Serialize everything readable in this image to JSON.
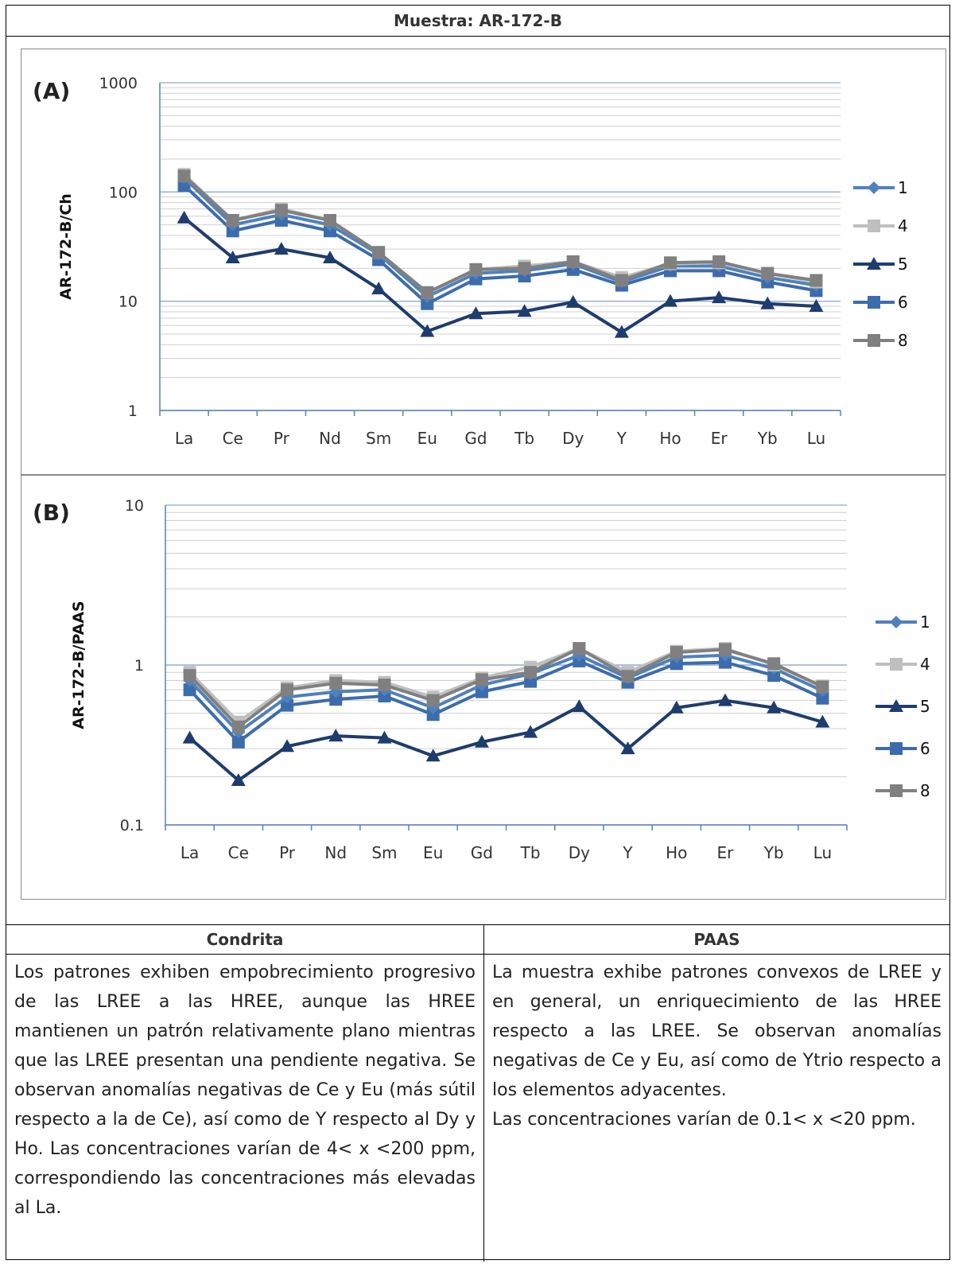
{
  "header": {
    "title": "Muestra: AR-172-B"
  },
  "legend_series": [
    "1",
    "4",
    "5",
    "6",
    "8"
  ],
  "series_colors": {
    "1": "#4f81bd",
    "4": "#bfbfbf",
    "5": "#1f3c6e",
    "6": "#3c6cac",
    "8": "#808080"
  },
  "chart_data": [
    {
      "panel_label": "(A)",
      "type": "line",
      "ylabel": "AR-172-B/Ch",
      "yscale": "log",
      "ylim": [
        1,
        1000
      ],
      "yticks": [
        "1",
        "10",
        "100",
        "1000"
      ],
      "legend_position": "right",
      "grid": true,
      "categories": [
        "La",
        "Ce",
        "Pr",
        "Nd",
        "Sm",
        "Eu",
        "Gd",
        "Tb",
        "Dy",
        "Y",
        "Ho",
        "Er",
        "Yb",
        "Lu"
      ],
      "series": [
        {
          "name": "1",
          "marker": "diamond",
          "values": [
            135,
            50,
            62,
            50,
            27,
            11,
            18,
            19,
            22,
            15,
            21,
            21,
            16.5,
            14
          ]
        },
        {
          "name": "4",
          "marker": "square",
          "values": [
            145,
            55,
            70,
            55,
            28,
            12,
            19.5,
            21,
            23,
            16.5,
            22,
            22.5,
            18,
            15
          ]
        },
        {
          "name": "5",
          "marker": "triangle",
          "values": [
            58,
            25,
            30,
            25,
            13,
            5.3,
            7.7,
            8.1,
            9.8,
            5.2,
            10,
            10.8,
            9.5,
            9
          ]
        },
        {
          "name": "6",
          "marker": "square",
          "values": [
            115,
            44,
            55,
            44,
            24,
            9.5,
            16,
            17,
            19.5,
            14,
            19,
            19,
            15,
            12.5
          ]
        },
        {
          "name": "8",
          "marker": "square",
          "values": [
            140,
            55,
            68,
            55,
            28,
            12,
            19.5,
            20,
            23,
            15.5,
            22.5,
            23,
            18,
            15.5
          ]
        }
      ]
    },
    {
      "panel_label": "(B)",
      "type": "line",
      "ylabel": "AR-172-B/PAAS",
      "yscale": "log",
      "ylim": [
        0.1,
        10
      ],
      "yticks": [
        "0.1",
        "1",
        "10"
      ],
      "legend_position": "right",
      "grid": true,
      "categories": [
        "La",
        "Ce",
        "Pr",
        "Nd",
        "Sm",
        "Eu",
        "Gd",
        "Tb",
        "Dy",
        "Y",
        "Ho",
        "Er",
        "Yb",
        "Lu"
      ],
      "series": [
        {
          "name": "1",
          "marker": "diamond",
          "values": [
            0.8,
            0.38,
            0.63,
            0.68,
            0.7,
            0.54,
            0.75,
            0.88,
            1.15,
            0.83,
            1.12,
            1.15,
            0.95,
            0.69
          ]
        },
        {
          "name": "4",
          "marker": "square",
          "values": [
            0.9,
            0.44,
            0.72,
            0.8,
            0.78,
            0.63,
            0.83,
            0.97,
            1.27,
            0.9,
            1.22,
            1.27,
            1.0,
            0.74
          ]
        },
        {
          "name": "5",
          "marker": "triangle",
          "values": [
            0.35,
            0.19,
            0.31,
            0.36,
            0.35,
            0.27,
            0.33,
            0.38,
            0.55,
            0.3,
            0.54,
            0.6,
            0.54,
            0.44
          ]
        },
        {
          "name": "6",
          "marker": "square",
          "values": [
            0.7,
            0.33,
            0.56,
            0.61,
            0.64,
            0.49,
            0.68,
            0.79,
            1.06,
            0.78,
            1.02,
            1.04,
            0.86,
            0.62
          ]
        },
        {
          "name": "8",
          "marker": "square",
          "values": [
            0.86,
            0.41,
            0.7,
            0.77,
            0.75,
            0.6,
            0.81,
            0.9,
            1.27,
            0.85,
            1.2,
            1.25,
            1.02,
            0.73
          ]
        }
      ]
    }
  ],
  "table": {
    "left_header": "Condrita",
    "right_header": "PAAS",
    "left_text": "Los patrones exhiben empobrecimiento progresivo de las LREE a las HREE, aunque las HREE mantienen un patrón relativamente plano mientras que las LREE presentan una pendiente negativa. Se observan anomalías negativas de Ce y Eu (más sútil respecto a la de Ce), así como de Y respecto al Dy y Ho. Las concentraciones varían de 4< x <200 ppm, correspondiendo las concentraciones más elevadas al La.",
    "right_text_1": "La muestra exhibe patrones convexos de LREE y en general, un enriquecimiento de las HREE respecto a las LREE. Se observan anomalías negativas de Ce y Eu, así como de Ytrio respecto a los elementos adyacentes.",
    "right_text_2": "Las concentraciones varían de 0.1< x <20 ppm."
  }
}
